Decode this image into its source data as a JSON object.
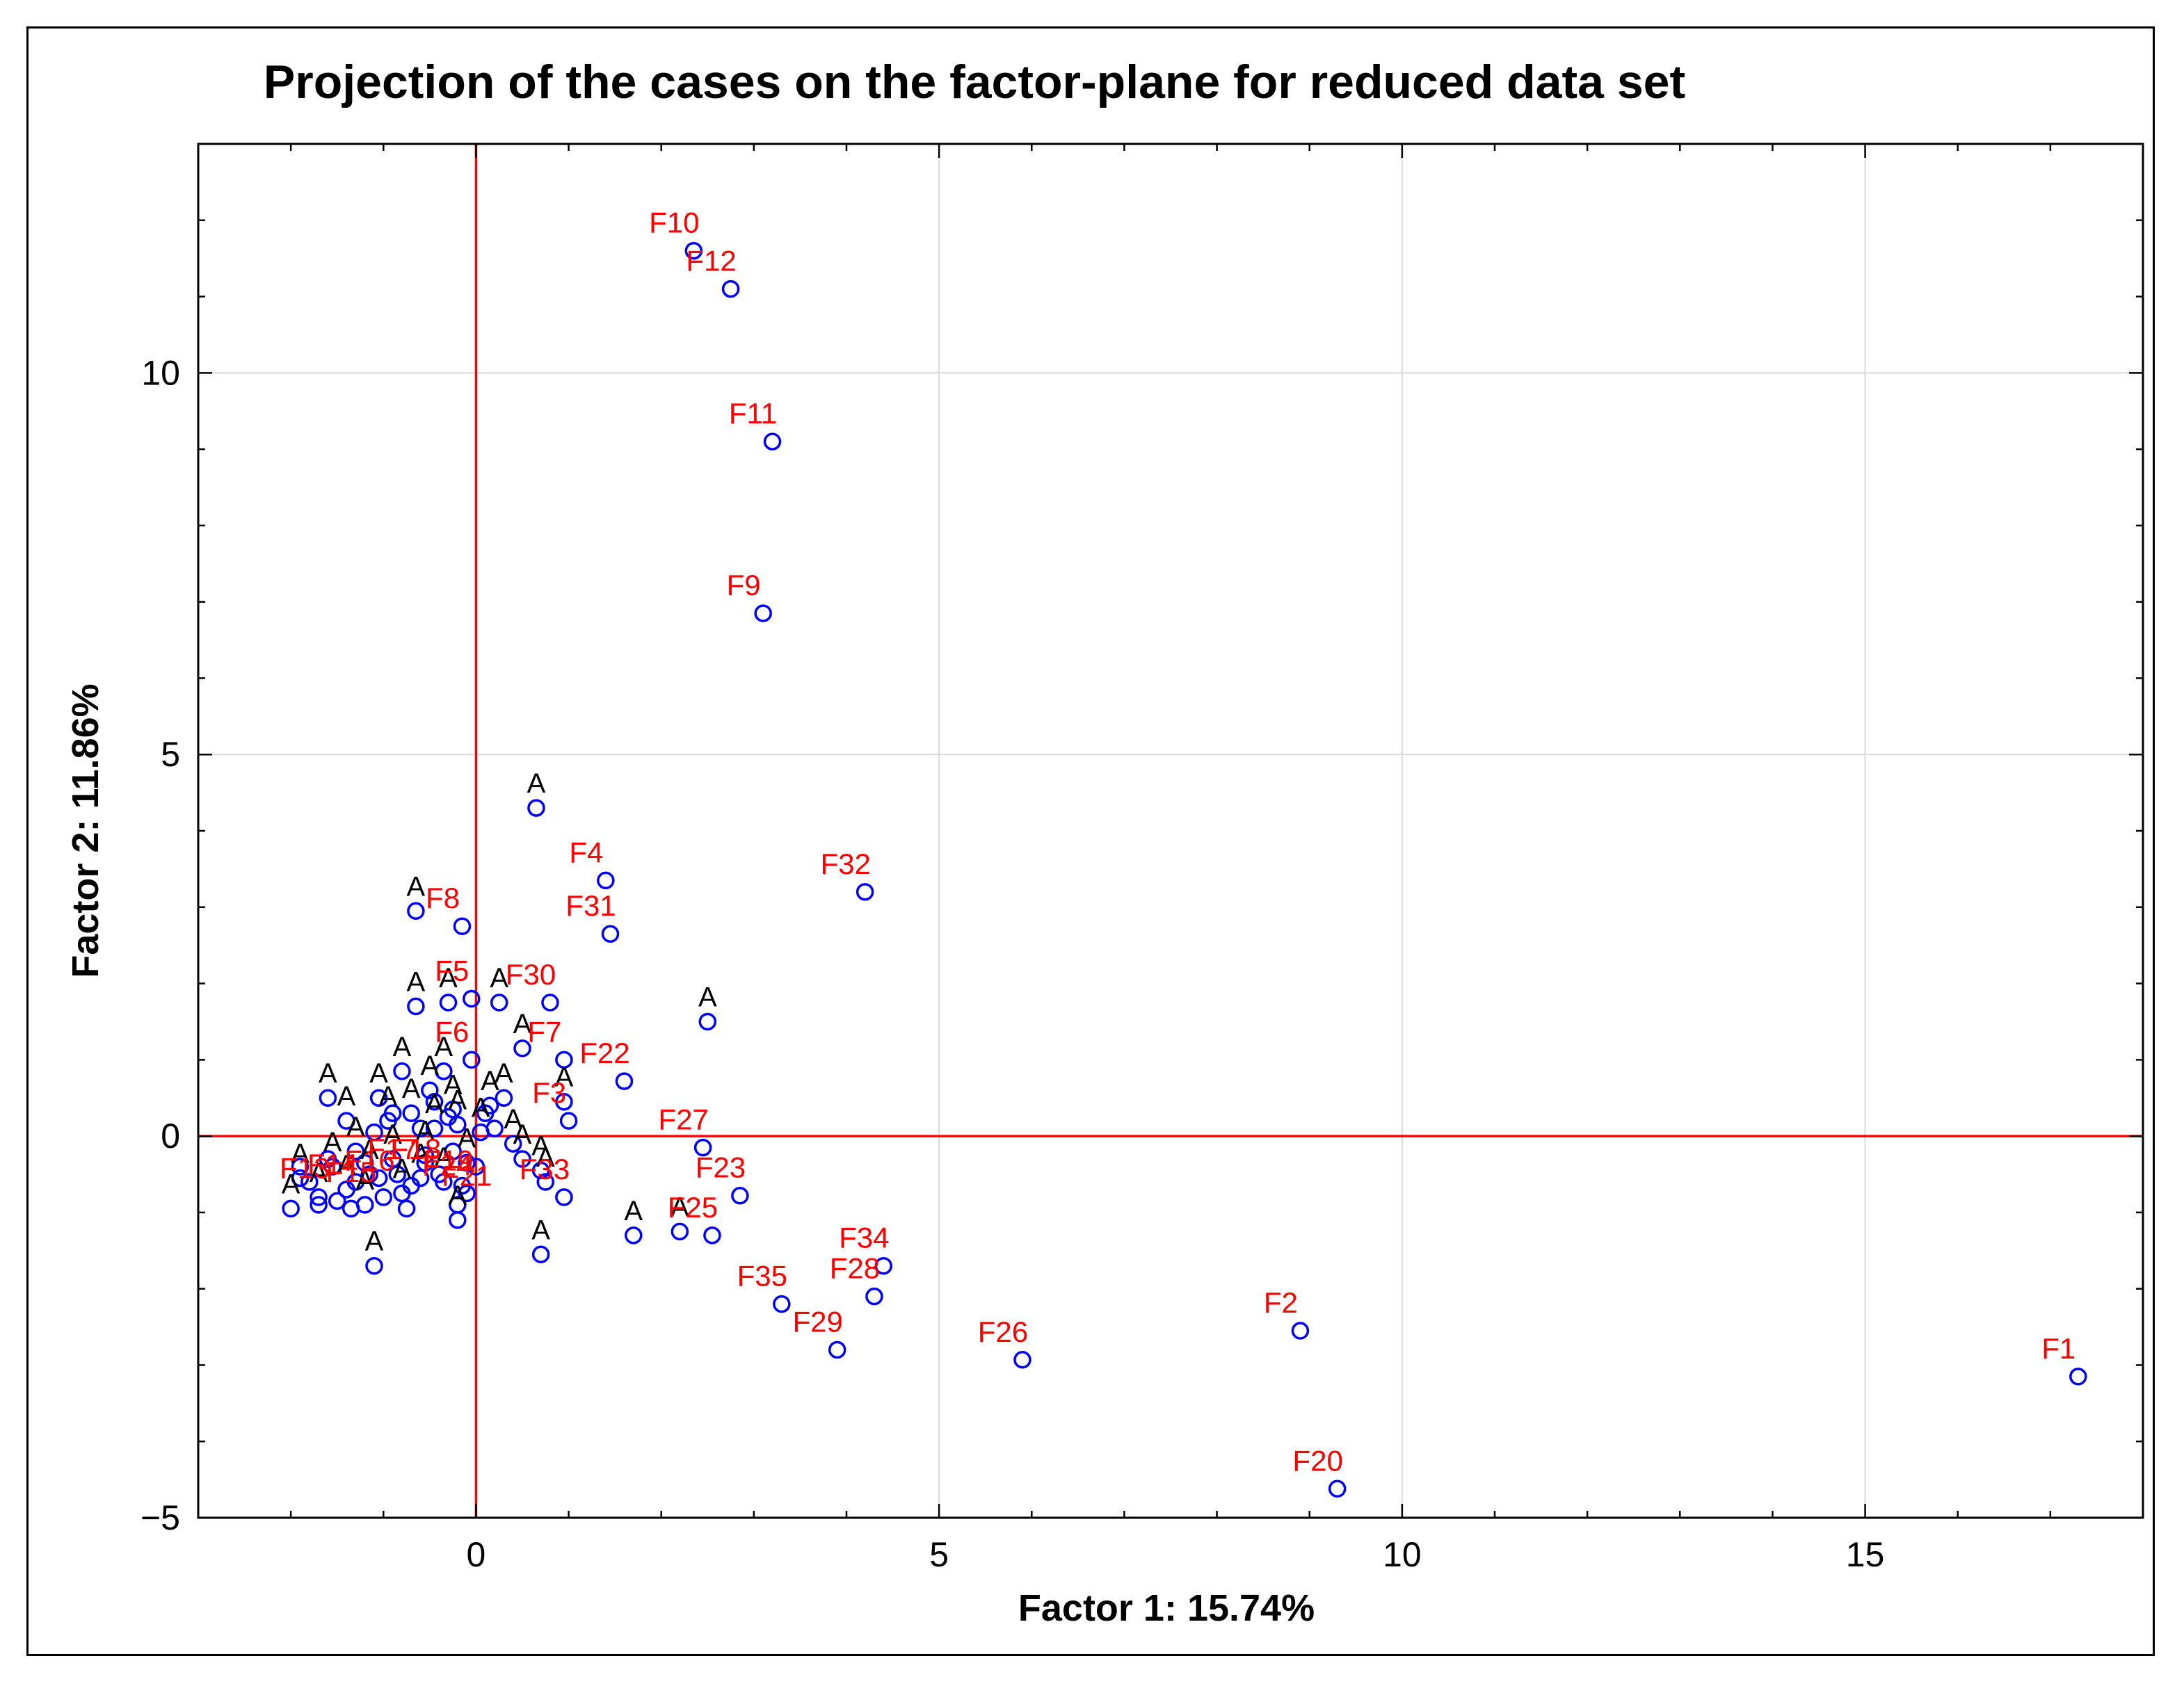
{
  "chart_data": {
    "type": "scatter",
    "title": "Projection of the cases on the factor-plane for reduced data set",
    "xlabel": "Factor 1: 15.74%",
    "ylabel": "Factor 2: 11.86%",
    "xlim": [
      -3,
      18
    ],
    "ylim": [
      -5,
      13
    ],
    "x_ticks": [
      0,
      5,
      10,
      15
    ],
    "y_ticks": [
      -5,
      0,
      5,
      10
    ],
    "x_tick_labels": [
      "0",
      "5",
      "10",
      "15"
    ],
    "y_tick_labels": [
      "−5",
      "0",
      "5",
      "10"
    ],
    "grid": true,
    "reference_lines": {
      "x": 0,
      "y": 0,
      "color": "#ff0000"
    },
    "marker_color": "#0000ff",
    "case_label_color": "#000000",
    "factor_label_color": "#ff0000",
    "labeled_points": [
      {
        "label": "F1",
        "x": 17.3,
        "y": -3.15
      },
      {
        "label": "F2",
        "x": 8.9,
        "y": -2.55
      },
      {
        "label": "F3",
        "x": 1.0,
        "y": 0.2
      },
      {
        "label": "F4",
        "x": 1.4,
        "y": 3.35
      },
      {
        "label": "F5",
        "x": -0.05,
        "y": 1.8
      },
      {
        "label": "F6",
        "x": -0.05,
        "y": 1.0
      },
      {
        "label": "F7",
        "x": 0.95,
        "y": 1.0
      },
      {
        "label": "F8",
        "x": -0.15,
        "y": 2.75
      },
      {
        "label": "F9",
        "x": 3.1,
        "y": 6.85
      },
      {
        "label": "F10",
        "x": 2.35,
        "y": 11.6
      },
      {
        "label": "F11",
        "x": 3.2,
        "y": 9.1
      },
      {
        "label": "F12",
        "x": 2.75,
        "y": 11.1
      },
      {
        "label": "F20",
        "x": 9.3,
        "y": -4.62
      },
      {
        "label": "F22",
        "x": 1.6,
        "y": 0.72
      },
      {
        "label": "F23",
        "x": 2.85,
        "y": -0.78
      },
      {
        "label": "F24",
        "x": -0.1,
        "y": -0.75
      },
      {
        "label": "F25",
        "x": 2.55,
        "y": -1.3
      },
      {
        "label": "F26",
        "x": 5.9,
        "y": -2.93
      },
      {
        "label": "F27",
        "x": 2.45,
        "y": -0.15
      },
      {
        "label": "F28",
        "x": 4.3,
        "y": -2.1
      },
      {
        "label": "F29",
        "x": 3.9,
        "y": -2.8
      },
      {
        "label": "F30",
        "x": 0.8,
        "y": 1.75
      },
      {
        "label": "F31",
        "x": 1.45,
        "y": 2.65
      },
      {
        "label": "F32",
        "x": 4.2,
        "y": 3.2
      },
      {
        "label": "F33",
        "x": 0.95,
        "y": -0.8
      },
      {
        "label": "F34",
        "x": 4.4,
        "y": -1.7
      },
      {
        "label": "F35",
        "x": 3.3,
        "y": -2.2
      }
    ],
    "case_points": [
      {
        "label": "A",
        "x": 0.65,
        "y": 4.3
      },
      {
        "label": "A",
        "x": -0.65,
        "y": 2.95
      },
      {
        "label": "A",
        "x": -0.65,
        "y": 1.7
      },
      {
        "label": "A",
        "x": 2.5,
        "y": 1.5
      },
      {
        "label": "A",
        "x": 0.5,
        "y": 1.15
      },
      {
        "label": "A",
        "x": -0.3,
        "y": 1.75
      },
      {
        "label": "A",
        "x": 0.25,
        "y": 1.75
      },
      {
        "label": "A",
        "x": 1.7,
        "y": -1.3
      },
      {
        "label": "A",
        "x": 2.2,
        "y": -1.25
      },
      {
        "label": "A",
        "x": 0.7,
        "y": -1.55
      },
      {
        "label": "A",
        "x": -1.1,
        "y": -1.7
      },
      {
        "label": "A",
        "x": -2.0,
        "y": -0.95
      },
      {
        "label": "A",
        "x": -1.6,
        "y": 0.5
      },
      {
        "label": "A",
        "x": -1.4,
        "y": 0.2
      },
      {
        "label": "A",
        "x": -1.05,
        "y": 0.5
      },
      {
        "label": "A",
        "x": -0.8,
        "y": 0.85
      },
      {
        "label": "A",
        "x": -0.5,
        "y": 0.6
      },
      {
        "label": "A",
        "x": -0.35,
        "y": 0.85
      },
      {
        "label": "A",
        "x": 0.15,
        "y": 0.4
      },
      {
        "label": "A",
        "x": 0.3,
        "y": 0.5
      },
      {
        "label": "A",
        "x": 0.95,
        "y": 0.45
      },
      {
        "label": "A",
        "x": 0.5,
        "y": -0.3
      },
      {
        "label": "A",
        "x": 0.75,
        "y": -0.6
      },
      {
        "label": "A",
        "x": -0.2,
        "y": -1.1
      },
      {
        "label": "A",
        "x": -0.9,
        "y": -0.3
      },
      {
        "label": "A",
        "x": -1.2,
        "y": -0.9
      },
      {
        "label": "A",
        "x": -0.6,
        "y": -0.55
      },
      {
        "label": "A",
        "x": -1.55,
        "y": -0.4
      },
      {
        "label": "A",
        "x": -1.9,
        "y": -0.55
      },
      {
        "label": "A",
        "x": -1.3,
        "y": -0.2
      },
      {
        "label": "A",
        "x": -0.95,
        "y": 0.2
      },
      {
        "label": "A",
        "x": -0.7,
        "y": 0.3
      },
      {
        "label": "A",
        "x": -0.45,
        "y": 0.1
      },
      {
        "label": "A",
        "x": -0.25,
        "y": 0.35
      },
      {
        "label": "A",
        "x": -0.1,
        "y": -0.35
      },
      {
        "label": "A",
        "x": 0.05,
        "y": 0.05
      },
      {
        "label": "A",
        "x": 0.4,
        "y": -0.1
      },
      {
        "label": "A",
        "x": -1.4,
        "y": -0.7
      },
      {
        "label": "A",
        "x": -0.8,
        "y": -0.75
      },
      {
        "label": "A",
        "x": -0.35,
        "y": -0.6
      },
      {
        "label": "A",
        "x": -1.7,
        "y": -0.8
      },
      {
        "label": "A",
        "x": -1.15,
        "y": -0.5
      },
      {
        "label": "A",
        "x": -0.55,
        "y": -0.25
      },
      {
        "label": "A",
        "x": -0.2,
        "y": 0.15
      },
      {
        "label": "A",
        "x": 0.7,
        "y": -0.45
      }
    ],
    "cluster_glyph_labels": [
      "F13",
      "F14",
      "F15",
      "F16",
      "F17",
      "F18",
      "F19",
      "F21"
    ]
  }
}
